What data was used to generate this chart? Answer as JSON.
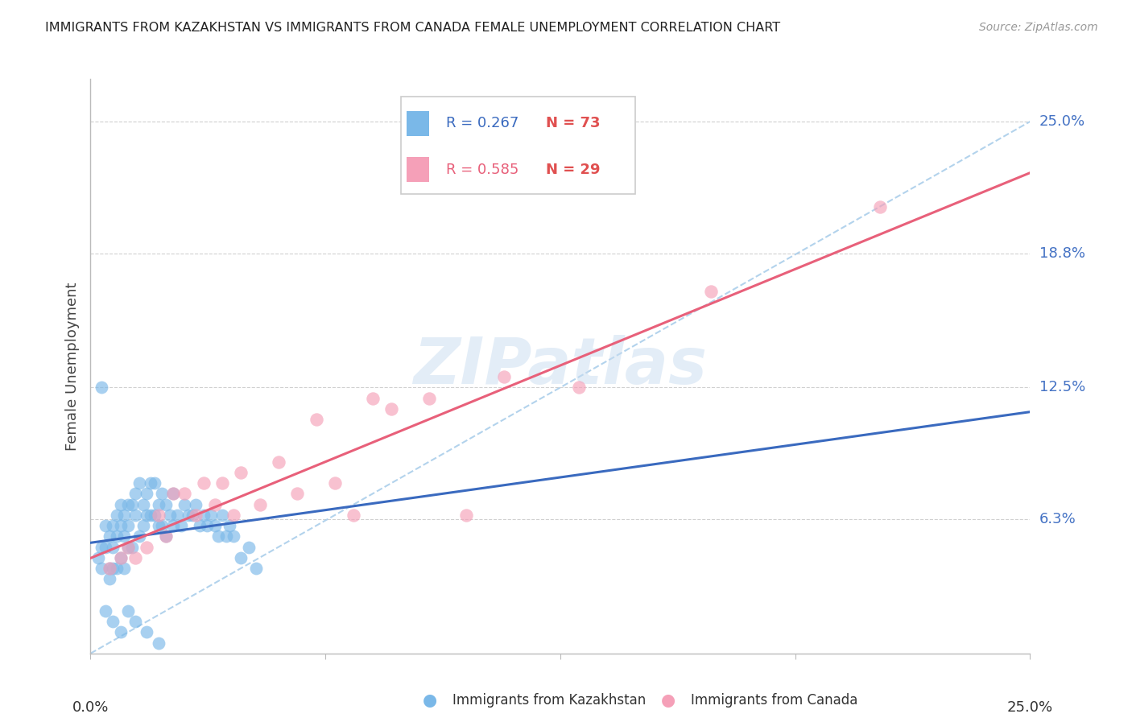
{
  "title": "IMMIGRANTS FROM KAZAKHSTAN VS IMMIGRANTS FROM CANADA FEMALE UNEMPLOYMENT CORRELATION CHART",
  "source": "Source: ZipAtlas.com",
  "ylabel": "Female Unemployment",
  "right_yticklabels": [
    "6.3%",
    "12.5%",
    "18.8%",
    "25.0%"
  ],
  "right_ytick_vals": [
    0.063,
    0.125,
    0.188,
    0.25
  ],
  "xmin": 0.0,
  "xmax": 0.25,
  "ymin": 0.0,
  "ymax": 0.27,
  "legend_r1": "R = 0.267",
  "legend_n1": "N = 73",
  "legend_r2": "R = 0.585",
  "legend_n2": "N = 29",
  "legend_label1": "Immigrants from Kazakhstan",
  "legend_label2": "Immigrants from Canada",
  "blue_scatter_color": "#7ab8e8",
  "pink_scatter_color": "#f5a0b8",
  "blue_line_color": "#3a6abf",
  "pink_line_color": "#e8607a",
  "dashed_line_color": "#a0c8e8",
  "n_color": "#e05050",
  "r_blue_color": "#3a6abf",
  "r_pink_color": "#e8607a",
  "watermark_color": "#c8dcf0",
  "grid_color": "#d0d0d0",
  "title_color": "#222222",
  "source_color": "#999999",
  "ylabel_color": "#444444",
  "axis_color": "#bbbbbb",
  "xtick_label_color": "#333333",
  "kazakhstan_x": [
    0.002,
    0.003,
    0.003,
    0.004,
    0.004,
    0.005,
    0.005,
    0.005,
    0.006,
    0.006,
    0.006,
    0.007,
    0.007,
    0.007,
    0.008,
    0.008,
    0.008,
    0.009,
    0.009,
    0.009,
    0.01,
    0.01,
    0.01,
    0.011,
    0.011,
    0.012,
    0.012,
    0.013,
    0.013,
    0.014,
    0.014,
    0.015,
    0.015,
    0.016,
    0.016,
    0.017,
    0.017,
    0.018,
    0.018,
    0.019,
    0.019,
    0.02,
    0.02,
    0.021,
    0.022,
    0.022,
    0.023,
    0.024,
    0.025,
    0.026,
    0.027,
    0.028,
    0.029,
    0.03,
    0.031,
    0.032,
    0.033,
    0.034,
    0.035,
    0.036,
    0.037,
    0.038,
    0.04,
    0.042,
    0.044,
    0.003,
    0.004,
    0.006,
    0.008,
    0.01,
    0.012,
    0.015,
    0.018
  ],
  "kazakhstan_y": [
    0.045,
    0.05,
    0.04,
    0.06,
    0.05,
    0.055,
    0.04,
    0.035,
    0.05,
    0.06,
    0.04,
    0.055,
    0.065,
    0.04,
    0.06,
    0.07,
    0.045,
    0.065,
    0.055,
    0.04,
    0.07,
    0.06,
    0.05,
    0.07,
    0.05,
    0.075,
    0.065,
    0.08,
    0.055,
    0.07,
    0.06,
    0.075,
    0.065,
    0.08,
    0.065,
    0.08,
    0.065,
    0.07,
    0.06,
    0.075,
    0.06,
    0.07,
    0.055,
    0.065,
    0.075,
    0.06,
    0.065,
    0.06,
    0.07,
    0.065,
    0.065,
    0.07,
    0.06,
    0.065,
    0.06,
    0.065,
    0.06,
    0.055,
    0.065,
    0.055,
    0.06,
    0.055,
    0.045,
    0.05,
    0.04,
    0.125,
    0.02,
    0.015,
    0.01,
    0.02,
    0.015,
    0.01,
    0.005
  ],
  "canada_x": [
    0.005,
    0.008,
    0.01,
    0.012,
    0.015,
    0.018,
    0.02,
    0.022,
    0.025,
    0.028,
    0.03,
    0.033,
    0.035,
    0.038,
    0.04,
    0.045,
    0.05,
    0.055,
    0.06,
    0.065,
    0.07,
    0.075,
    0.08,
    0.09,
    0.1,
    0.11,
    0.13,
    0.165,
    0.21
  ],
  "canada_y": [
    0.04,
    0.045,
    0.05,
    0.045,
    0.05,
    0.065,
    0.055,
    0.075,
    0.075,
    0.065,
    0.08,
    0.07,
    0.08,
    0.065,
    0.085,
    0.07,
    0.09,
    0.075,
    0.11,
    0.08,
    0.065,
    0.12,
    0.115,
    0.12,
    0.065,
    0.13,
    0.125,
    0.17,
    0.21
  ]
}
